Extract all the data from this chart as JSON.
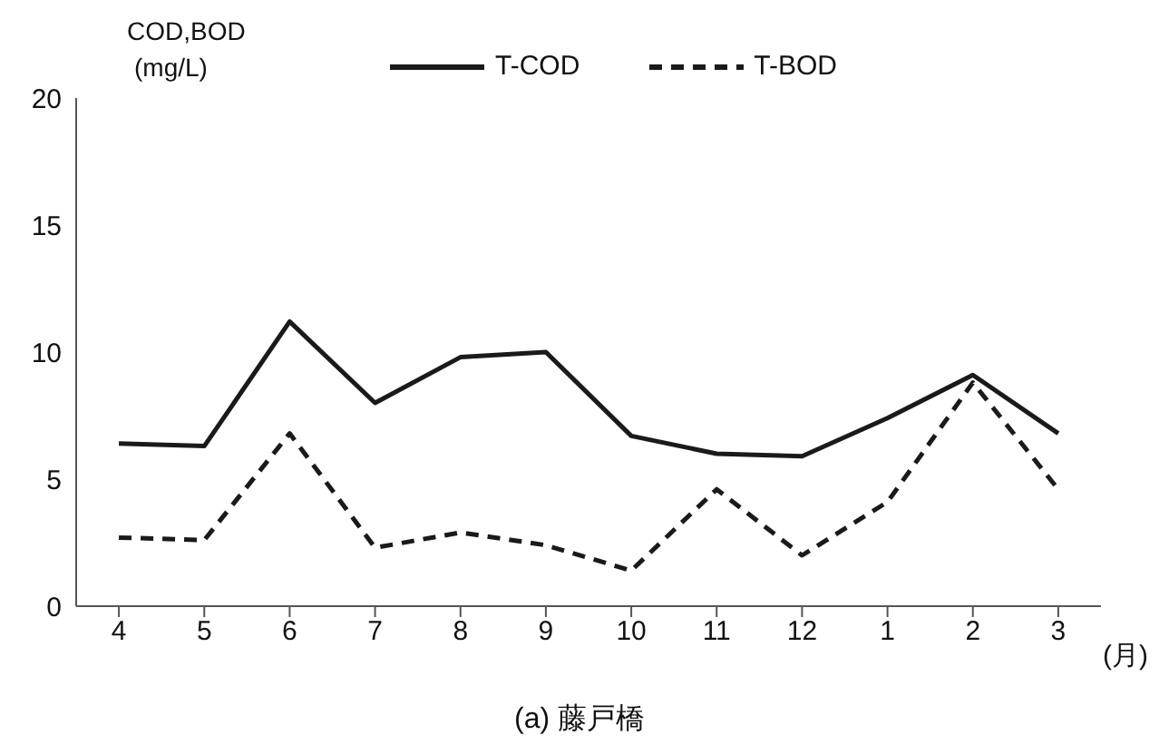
{
  "chart_data": {
    "type": "line",
    "title": "(a)  藤戸橋",
    "xlabel": "(月)",
    "ylabel": "COD,BOD\n(mg/L)",
    "categories": [
      "4",
      "5",
      "6",
      "7",
      "8",
      "9",
      "10",
      "11",
      "12",
      "1",
      "2",
      "3"
    ],
    "ylim": [
      0,
      20
    ],
    "yticks": [
      0,
      5,
      10,
      15,
      20
    ],
    "grid": false,
    "legend": "top",
    "marker": "none",
    "series": [
      {
        "name": "T-COD",
        "color": "#1a1a1a",
        "line_style": "solid",
        "values": [
          6.4,
          6.3,
          11.2,
          8.0,
          9.8,
          10.0,
          6.7,
          6.0,
          5.9,
          7.4,
          9.1,
          6.8
        ]
      },
      {
        "name": "T-BOD",
        "color": "#1a1a1a",
        "line_style": "dashed",
        "values": [
          2.7,
          2.6,
          6.8,
          2.3,
          2.9,
          2.4,
          1.4,
          4.6,
          2.0,
          4.1,
          8.8,
          4.6
        ]
      }
    ]
  }
}
